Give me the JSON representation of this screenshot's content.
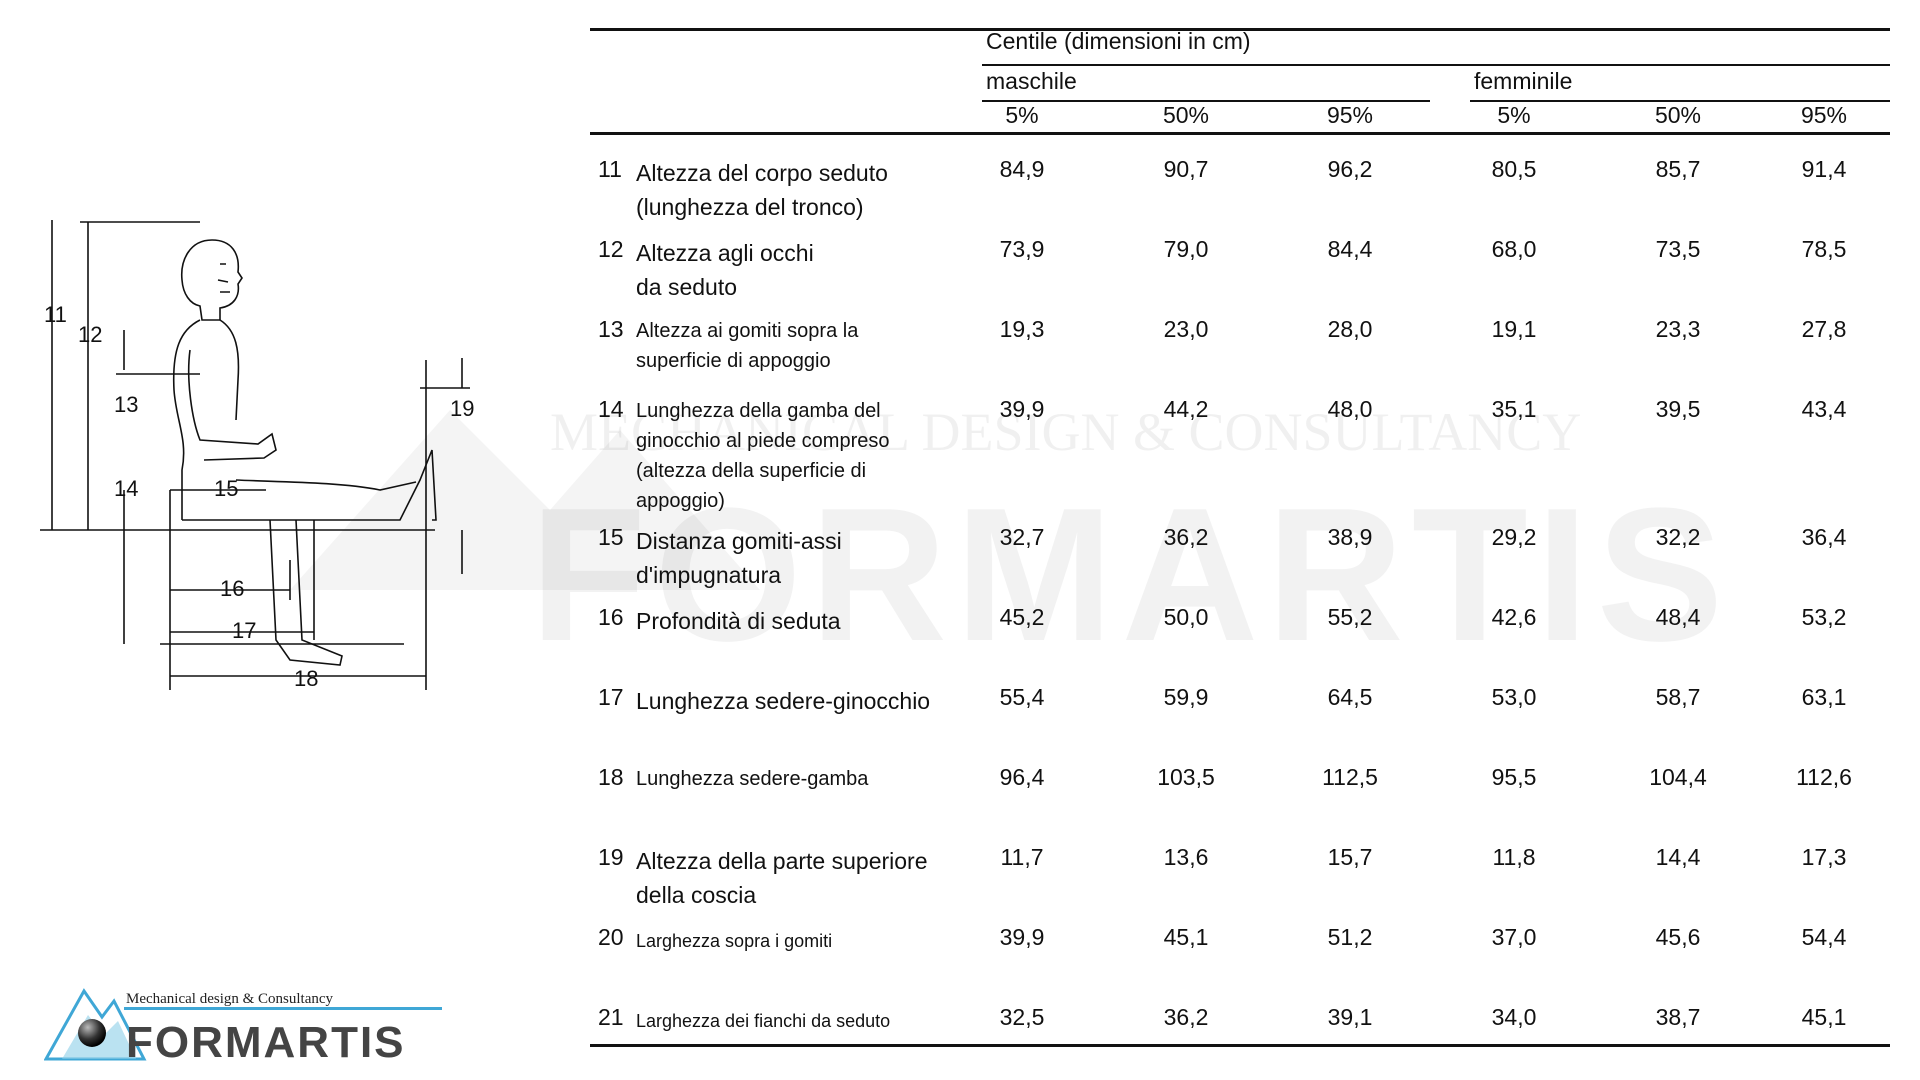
{
  "figure": {
    "dimension_labels": [
      "11",
      "12",
      "13",
      "14",
      "15",
      "16",
      "17",
      "18",
      "19"
    ]
  },
  "watermark": {
    "subtitle": "MECHANICAL DESIGN & CONSULTANCY",
    "name": "FORMARTIS"
  },
  "logo": {
    "subtitle": "Mechanical design & Consultancy",
    "name": "FORMARTIS"
  },
  "table": {
    "header": {
      "centile": "Centile (dimensioni in cm)",
      "male": "maschile",
      "female": "femminile",
      "percentiles": [
        "5%",
        "50%",
        "95%",
        "5%",
        "50%",
        "95%"
      ]
    },
    "rows": [
      {
        "num": "11",
        "label": "Altezza del corpo seduto (lunghezza del tronco)",
        "values": [
          "84,9",
          "90,7",
          "96,2",
          "80,5",
          "85,7",
          "91,4"
        ]
      },
      {
        "num": "12",
        "label": "Altezza agli occhi da seduto",
        "values": [
          "73,9",
          "79,0",
          "84,4",
          "68,0",
          "73,5",
          "78,5"
        ]
      },
      {
        "num": "13",
        "label": "Altezza ai gomiti sopra la superficie di appoggio",
        "values": [
          "19,3",
          "23,0",
          "28,0",
          "19,1",
          "23,3",
          "27,8"
        ]
      },
      {
        "num": "14",
        "label": "Lunghezza della gamba del ginocchio al piede compreso (altezza della superficie di appoggio)",
        "values": [
          "39,9",
          "44,2",
          "48,0",
          "35,1",
          "39,5",
          "43,4"
        ]
      },
      {
        "num": "15",
        "label": "Distanza gomiti-assi d'impugnatura",
        "values": [
          "32,7",
          "36,2",
          "38,9",
          "29,2",
          "32,2",
          "36,4"
        ]
      },
      {
        "num": "16",
        "label": "Profondità di seduta",
        "values": [
          "45,2",
          "50,0",
          "55,2",
          "42,6",
          "48,4",
          "53,2"
        ]
      },
      {
        "num": "17",
        "label": "Lunghezza sedere-ginocchio",
        "values": [
          "55,4",
          "59,9",
          "64,5",
          "53,0",
          "58,7",
          "63,1"
        ]
      },
      {
        "num": "18",
        "label": "Lunghezza sedere-gamba",
        "values": [
          "96,4",
          "103,5",
          "112,5",
          "95,5",
          "104,4",
          "112,6"
        ]
      },
      {
        "num": "19",
        "label": "Altezza della parte superiore della coscia",
        "values": [
          "11,7",
          "13,6",
          "15,7",
          "11,8",
          "14,4",
          "17,3"
        ]
      },
      {
        "num": "20",
        "label": "Larghezza sopra i gomiti",
        "values": [
          "39,9",
          "45,1",
          "51,2",
          "37,0",
          "45,6",
          "54,4"
        ]
      },
      {
        "num": "21",
        "label": "Larghezza dei fianchi da seduto",
        "values": [
          "32,5",
          "36,2",
          "39,1",
          "34,0",
          "38,7",
          "45,1"
        ]
      }
    ]
  }
}
